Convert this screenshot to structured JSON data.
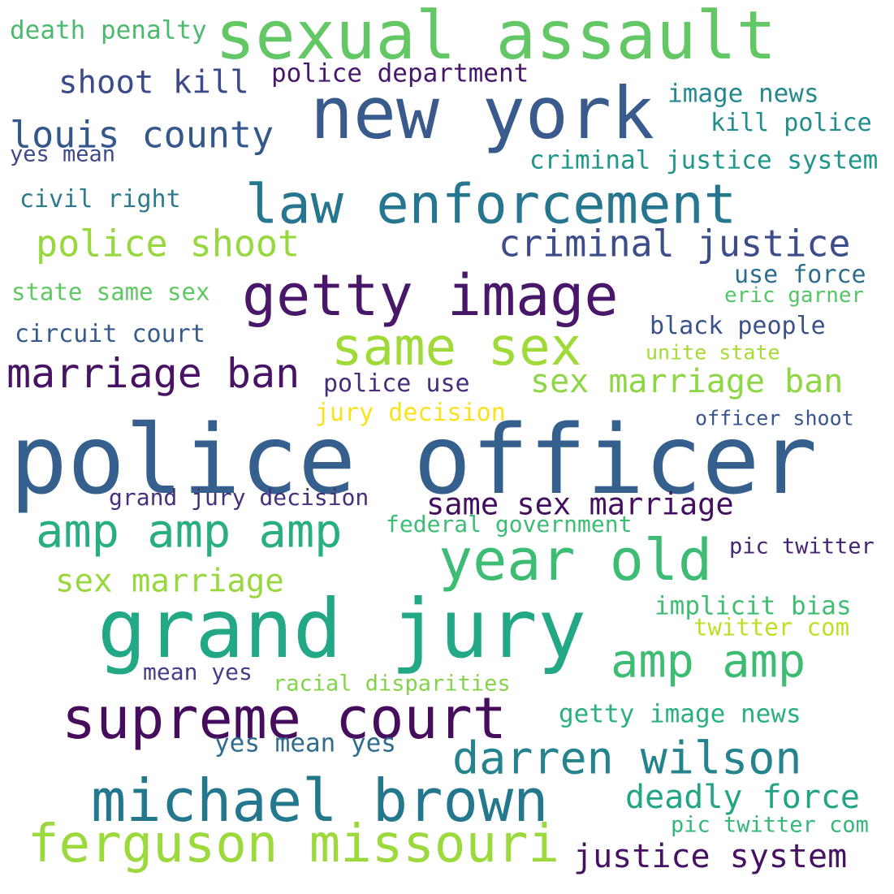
{
  "words": [
    {
      "text": "sexual assault",
      "color": "#64c765"
    },
    {
      "text": "death penalty",
      "color": "#4bb96e"
    },
    {
      "text": "shoot kill",
      "color": "#3b4a8a"
    },
    {
      "text": "police department",
      "color": "#46176a"
    },
    {
      "text": "new york",
      "color": "#385a8c"
    },
    {
      "text": "image news",
      "color": "#24888e"
    },
    {
      "text": "louis county",
      "color": "#35588c"
    },
    {
      "text": "kill police",
      "color": "#218c8d"
    },
    {
      "text": "yes mean",
      "color": "#3e4a89"
    },
    {
      "text": "criminal justice system",
      "color": "#20968b"
    },
    {
      "text": "civil right",
      "color": "#2c7a8e"
    },
    {
      "text": "law enforcement",
      "color": "#25768e"
    },
    {
      "text": "police shoot",
      "color": "#97d83f"
    },
    {
      "text": "criminal justice",
      "color": "#3d4d8a"
    },
    {
      "text": "use force",
      "color": "#2c6e8e"
    },
    {
      "text": "state same sex",
      "color": "#5ec962"
    },
    {
      "text": "getty image",
      "color": "#481769"
    },
    {
      "text": "eric garner",
      "color": "#54c568"
    },
    {
      "text": "circuit court",
      "color": "#365b8c"
    },
    {
      "text": "black people",
      "color": "#3b518b"
    },
    {
      "text": "same sex",
      "color": "#a0da39"
    },
    {
      "text": "unite state",
      "color": "#a6db35"
    },
    {
      "text": "marriage ban",
      "color": "#471365"
    },
    {
      "text": "police use",
      "color": "#472d7b"
    },
    {
      "text": "sex marriage ban",
      "color": "#8ed645"
    },
    {
      "text": "jury decision",
      "color": "#f9e21d"
    },
    {
      "text": "officer shoot",
      "color": "#39568c"
    },
    {
      "text": "police officer",
      "color": "#355f8d"
    },
    {
      "text": "grand jury decision",
      "color": "#472f7d"
    },
    {
      "text": "same sex marriage",
      "color": "#440f5f"
    },
    {
      "text": "amp amp amp",
      "color": "#28ae80"
    },
    {
      "text": "federal government",
      "color": "#3cbc75"
    },
    {
      "text": "year old",
      "color": "#3dbc74"
    },
    {
      "text": "pic twitter",
      "color": "#482475"
    },
    {
      "text": "sex marriage",
      "color": "#98d83e"
    },
    {
      "text": "grand jury",
      "color": "#22a884"
    },
    {
      "text": "implicit bias",
      "color": "#40bd72"
    },
    {
      "text": "twitter com",
      "color": "#bddf26"
    },
    {
      "text": "amp amp",
      "color": "#3fbc73"
    },
    {
      "text": "mean yes",
      "color": "#433e85"
    },
    {
      "text": "racial disparities",
      "color": "#84d44b"
    },
    {
      "text": "supreme court",
      "color": "#450d5c"
    },
    {
      "text": "getty image news",
      "color": "#2ab07f"
    },
    {
      "text": "yes mean yes",
      "color": "#2f6c8e"
    },
    {
      "text": "darren wilson",
      "color": "#25838e"
    },
    {
      "text": "michael brown",
      "color": "#23788e"
    },
    {
      "text": "deadly force",
      "color": "#21a585"
    },
    {
      "text": "pic twitter com",
      "color": "#35b779"
    },
    {
      "text": "ferguson missouri",
      "color": "#9bd93c"
    },
    {
      "text": "justice system",
      "color": "#471164"
    }
  ]
}
